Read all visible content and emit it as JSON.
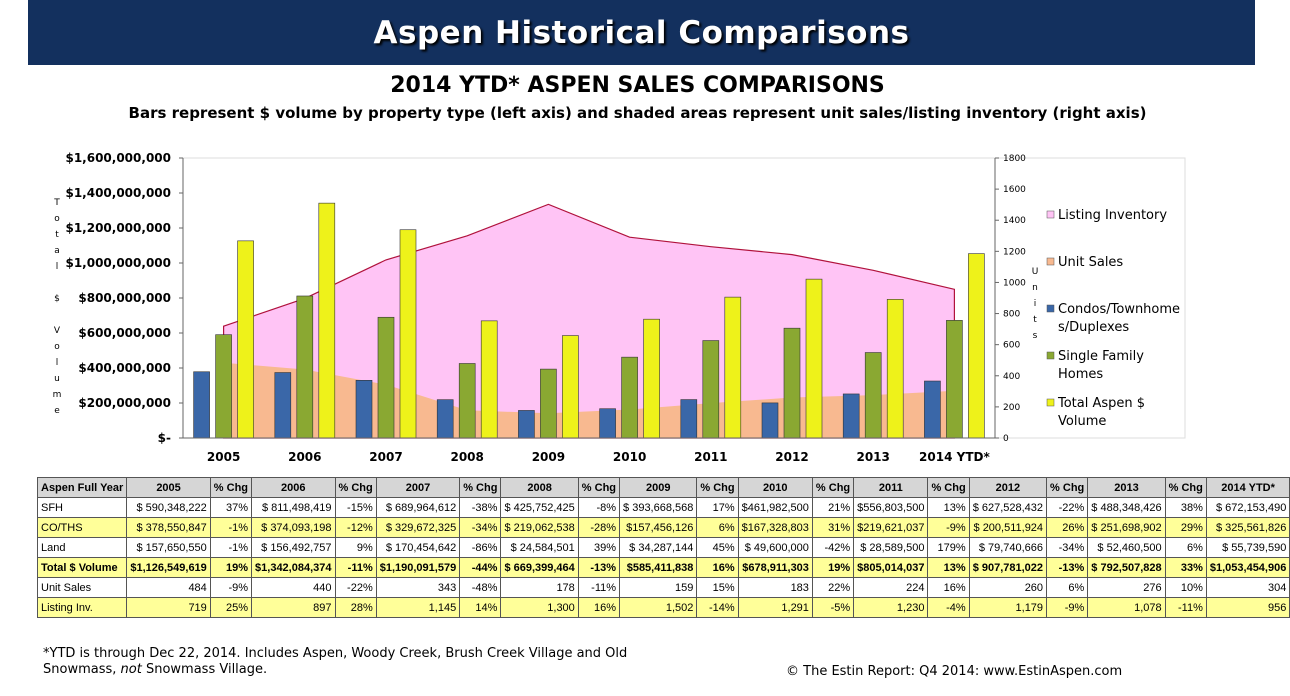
{
  "banner": {
    "title": "Aspen Historical Comparisons"
  },
  "chart_data": {
    "type": "bar",
    "title": "2014 YTD* ASPEN SALES COMPARISONS",
    "subtitle": "Bars represent $ volume by property type (left axis) and shaded areas represent unit sales/listing inventory (right axis)",
    "ylabel": "Total $ Volume",
    "y2label": "Units",
    "categories": [
      "2005",
      "2006",
      "2007",
      "2008",
      "2009",
      "2010",
      "2011",
      "2012",
      "2013",
      "2014 YTD*"
    ],
    "ylim": [
      0,
      1600000000
    ],
    "y2lim": [
      0,
      1800
    ],
    "y_tick_labels": [
      "$-",
      "$200,000,000",
      "$400,000,000",
      "$600,000,000",
      "$800,000,000",
      "$1,000,000,000",
      "$1,200,000,000",
      "$1,400,000,000",
      "$1,600,000,000"
    ],
    "y2_tick_labels": [
      "0",
      "200",
      "400",
      "600",
      "800",
      "1000",
      "1200",
      "1400",
      "1600",
      "1800"
    ],
    "bar_series": [
      {
        "name": "Condos/Townhomes/Duplexes",
        "color": "#3a67a8",
        "values": [
          378550847,
          374093198,
          329672325,
          219062538,
          157456126,
          167328803,
          219621037,
          200511924,
          251698902,
          325561826
        ]
      },
      {
        "name": "Single Family Homes",
        "color": "#8aa832",
        "values": [
          590348222,
          811498419,
          689964612,
          425752425,
          393668568,
          461982500,
          556803500,
          627528432,
          488348426,
          672153490
        ]
      },
      {
        "name": "Total Aspen $ Volume",
        "color": "#eef21a",
        "values": [
          1126549619,
          1342084374,
          1190091579,
          669399464,
          585411838,
          678911303,
          805014037,
          907781022,
          792507828,
          1053454906
        ]
      }
    ],
    "area_series": [
      {
        "name": "Listing Inventory",
        "color": "#ffc4f5",
        "values": [
          719,
          897,
          1145,
          1300,
          1502,
          1291,
          1230,
          1179,
          1078,
          956
        ]
      },
      {
        "name": "Unit Sales",
        "color": "#f8b990",
        "values": [
          484,
          440,
          343,
          178,
          159,
          183,
          224,
          260,
          276,
          304
        ]
      }
    ],
    "legend": [
      {
        "label": "Listing Inventory",
        "color": "#ffc4f5"
      },
      {
        "label": "Unit Sales",
        "color": "#f8b990"
      },
      {
        "label": "Condos/Townhome s/Duplexes",
        "color": "#3a67a8"
      },
      {
        "label": "Single Family Homes",
        "color": "#8aa832"
      },
      {
        "label": "Total Aspen $ Volume",
        "color": "#eef21a"
      }
    ],
    "legend_position": "right"
  },
  "table": {
    "header": [
      "Aspen Full Year",
      "2005",
      "% Chg",
      "2006",
      "% Chg",
      "2007",
      "% Chg",
      "2008",
      "% Chg",
      "2009",
      "% Chg",
      "2010",
      "% Chg",
      "2011",
      "% Chg",
      "2012",
      "% Chg",
      "2013",
      "% Chg",
      "2014 YTD*"
    ],
    "rows": [
      {
        "label": "SFH",
        "style": "",
        "cells": [
          "$ 590,348,222",
          "37%",
          "$ 811,498,419",
          "-15%",
          "$ 689,964,612",
          "-38%",
          "$ 425,752,425",
          "-8%",
          "$ 393,668,568",
          "17%",
          "$461,982,500",
          "21%",
          "$556,803,500",
          "13%",
          "$ 627,528,432",
          "-22%",
          "$ 488,348,426",
          "38%",
          "$ 672,153,490"
        ]
      },
      {
        "label": "CO/THS",
        "style": "yel",
        "cells": [
          "$ 378,550,847",
          "-1%",
          "$ 374,093,198",
          "-12%",
          "$ 329,672,325",
          "-34%",
          "$ 219,062,538",
          "-28%",
          "$157,456,126",
          "6%",
          "$167,328,803",
          "31%",
          "$219,621,037",
          "-9%",
          "$ 200,511,924",
          "26%",
          "$ 251,698,902",
          "29%",
          "$ 325,561,826"
        ]
      },
      {
        "label": "Land",
        "style": "",
        "cells": [
          "$ 157,650,550",
          "-1%",
          "$ 156,492,757",
          "9%",
          "$ 170,454,642",
          "-86%",
          "$ 24,584,501",
          "39%",
          "$ 34,287,144",
          "45%",
          "$ 49,600,000",
          "-42%",
          "$ 28,589,500",
          "179%",
          "$ 79,740,666",
          "-34%",
          "$ 52,460,500",
          "6%",
          "$ 55,739,590"
        ]
      },
      {
        "label": "Total $ Volume",
        "style": "yel",
        "cells": [
          "$1,126,549,619",
          "19%",
          "$1,342,084,374",
          "-11%",
          "$1,190,091,579",
          "-44%",
          "$ 669,399,464",
          "-13%",
          "$585,411,838",
          "16%",
          "$678,911,303",
          "19%",
          "$805,014,037",
          "13%",
          "$ 907,781,022",
          "-13%",
          "$ 792,507,828",
          "33%",
          "$1,053,454,906"
        ]
      },
      {
        "label": "Unit Sales",
        "style": "",
        "cells": [
          "484",
          "-9%",
          "440",
          "-22%",
          "343",
          "-48%",
          "178",
          "-11%",
          "159",
          "15%",
          "183",
          "22%",
          "224",
          "16%",
          "260",
          "6%",
          "276",
          "10%",
          "304"
        ]
      },
      {
        "label": "Listing Inv.",
        "style": "yel",
        "cells": [
          "719",
          "25%",
          "897",
          "28%",
          "1,145",
          "14%",
          "1,300",
          "16%",
          "1,502",
          "-14%",
          "1,291",
          "-5%",
          "1,230",
          "-4%",
          "1,179",
          "-9%",
          "1,078",
          "-11%",
          "956"
        ]
      }
    ]
  },
  "footnote": {
    "line1": "*YTD is through Dec 22, 2014.  Includes Aspen, Woody Creek, Brush Creek Village and Old",
    "line2_pre": "Snowmass, ",
    "line2_em": "not",
    "line2_post": " Snowmass Village."
  },
  "credit": "© The Estin Report: Q4 2014: www.EstinAspen.com"
}
